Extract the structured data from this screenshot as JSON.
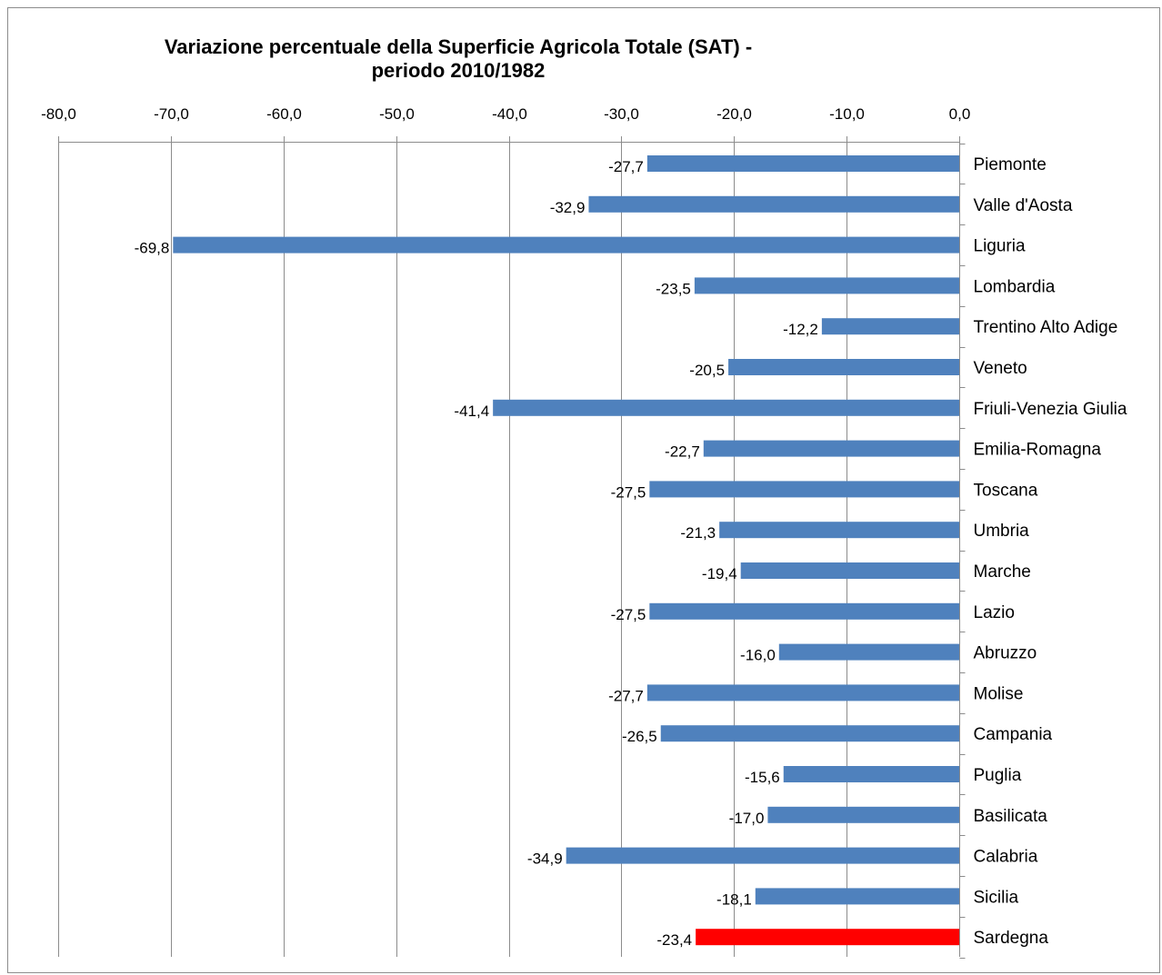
{
  "chart_data": {
    "type": "bar",
    "orientation": "horizontal",
    "title": "Variazione percentuale della Superficie Agricola Totale (SAT) - periodo 2010/1982",
    "title_lines": [
      "Variazione percentuale della Superficie Agricola Totale (SAT) -",
      "periodo 2010/1982"
    ],
    "xlabel": "",
    "ylabel": "",
    "xlim": [
      -80,
      0
    ],
    "x_ticks": [
      "-80,0",
      "-70,0",
      "-60,0",
      "-50,0",
      "-40,0",
      "-30,0",
      "-20,0",
      "-10,0",
      "0,0"
    ],
    "x_axis_position": "top",
    "category_axis_position": "right",
    "grid": true,
    "legend": "none",
    "categories": [
      "Piemonte",
      "Valle d'Aosta",
      "Liguria",
      "Lombardia",
      "Trentino Alto Adige",
      "Veneto",
      "Friuli-Venezia Giulia",
      "Emilia-Romagna",
      "Toscana",
      "Umbria",
      "Marche",
      "Lazio",
      "Abruzzo",
      "Molise",
      "Campania",
      "Puglia",
      "Basilicata",
      "Calabria",
      "Sicilia",
      "Sardegna"
    ],
    "values": [
      -27.7,
      -32.9,
      -69.8,
      -23.5,
      -12.2,
      -20.5,
      -41.4,
      -22.7,
      -27.5,
      -21.3,
      -19.4,
      -27.5,
      -16.0,
      -27.7,
      -26.5,
      -15.6,
      -17.0,
      -34.9,
      -18.1,
      -23.4
    ],
    "data_labels": [
      "-27,7",
      "-32,9",
      "-69,8",
      "-23,5",
      "-12,2",
      "-20,5",
      "-41,4",
      "-22,7",
      "-27,5",
      "-21,3",
      "-19,4",
      "-27,5",
      "-16,0",
      "-27,7",
      "-26,5",
      "-15,6",
      "-17,0",
      "-34,9",
      "-18,1",
      "-23,4"
    ],
    "colors": {
      "bar": "#4f81bd",
      "highlight": "#ff0000",
      "grid": "#8c8c8c",
      "axis": "#8c8c8c"
    },
    "highlight_category": "Sardegna"
  }
}
